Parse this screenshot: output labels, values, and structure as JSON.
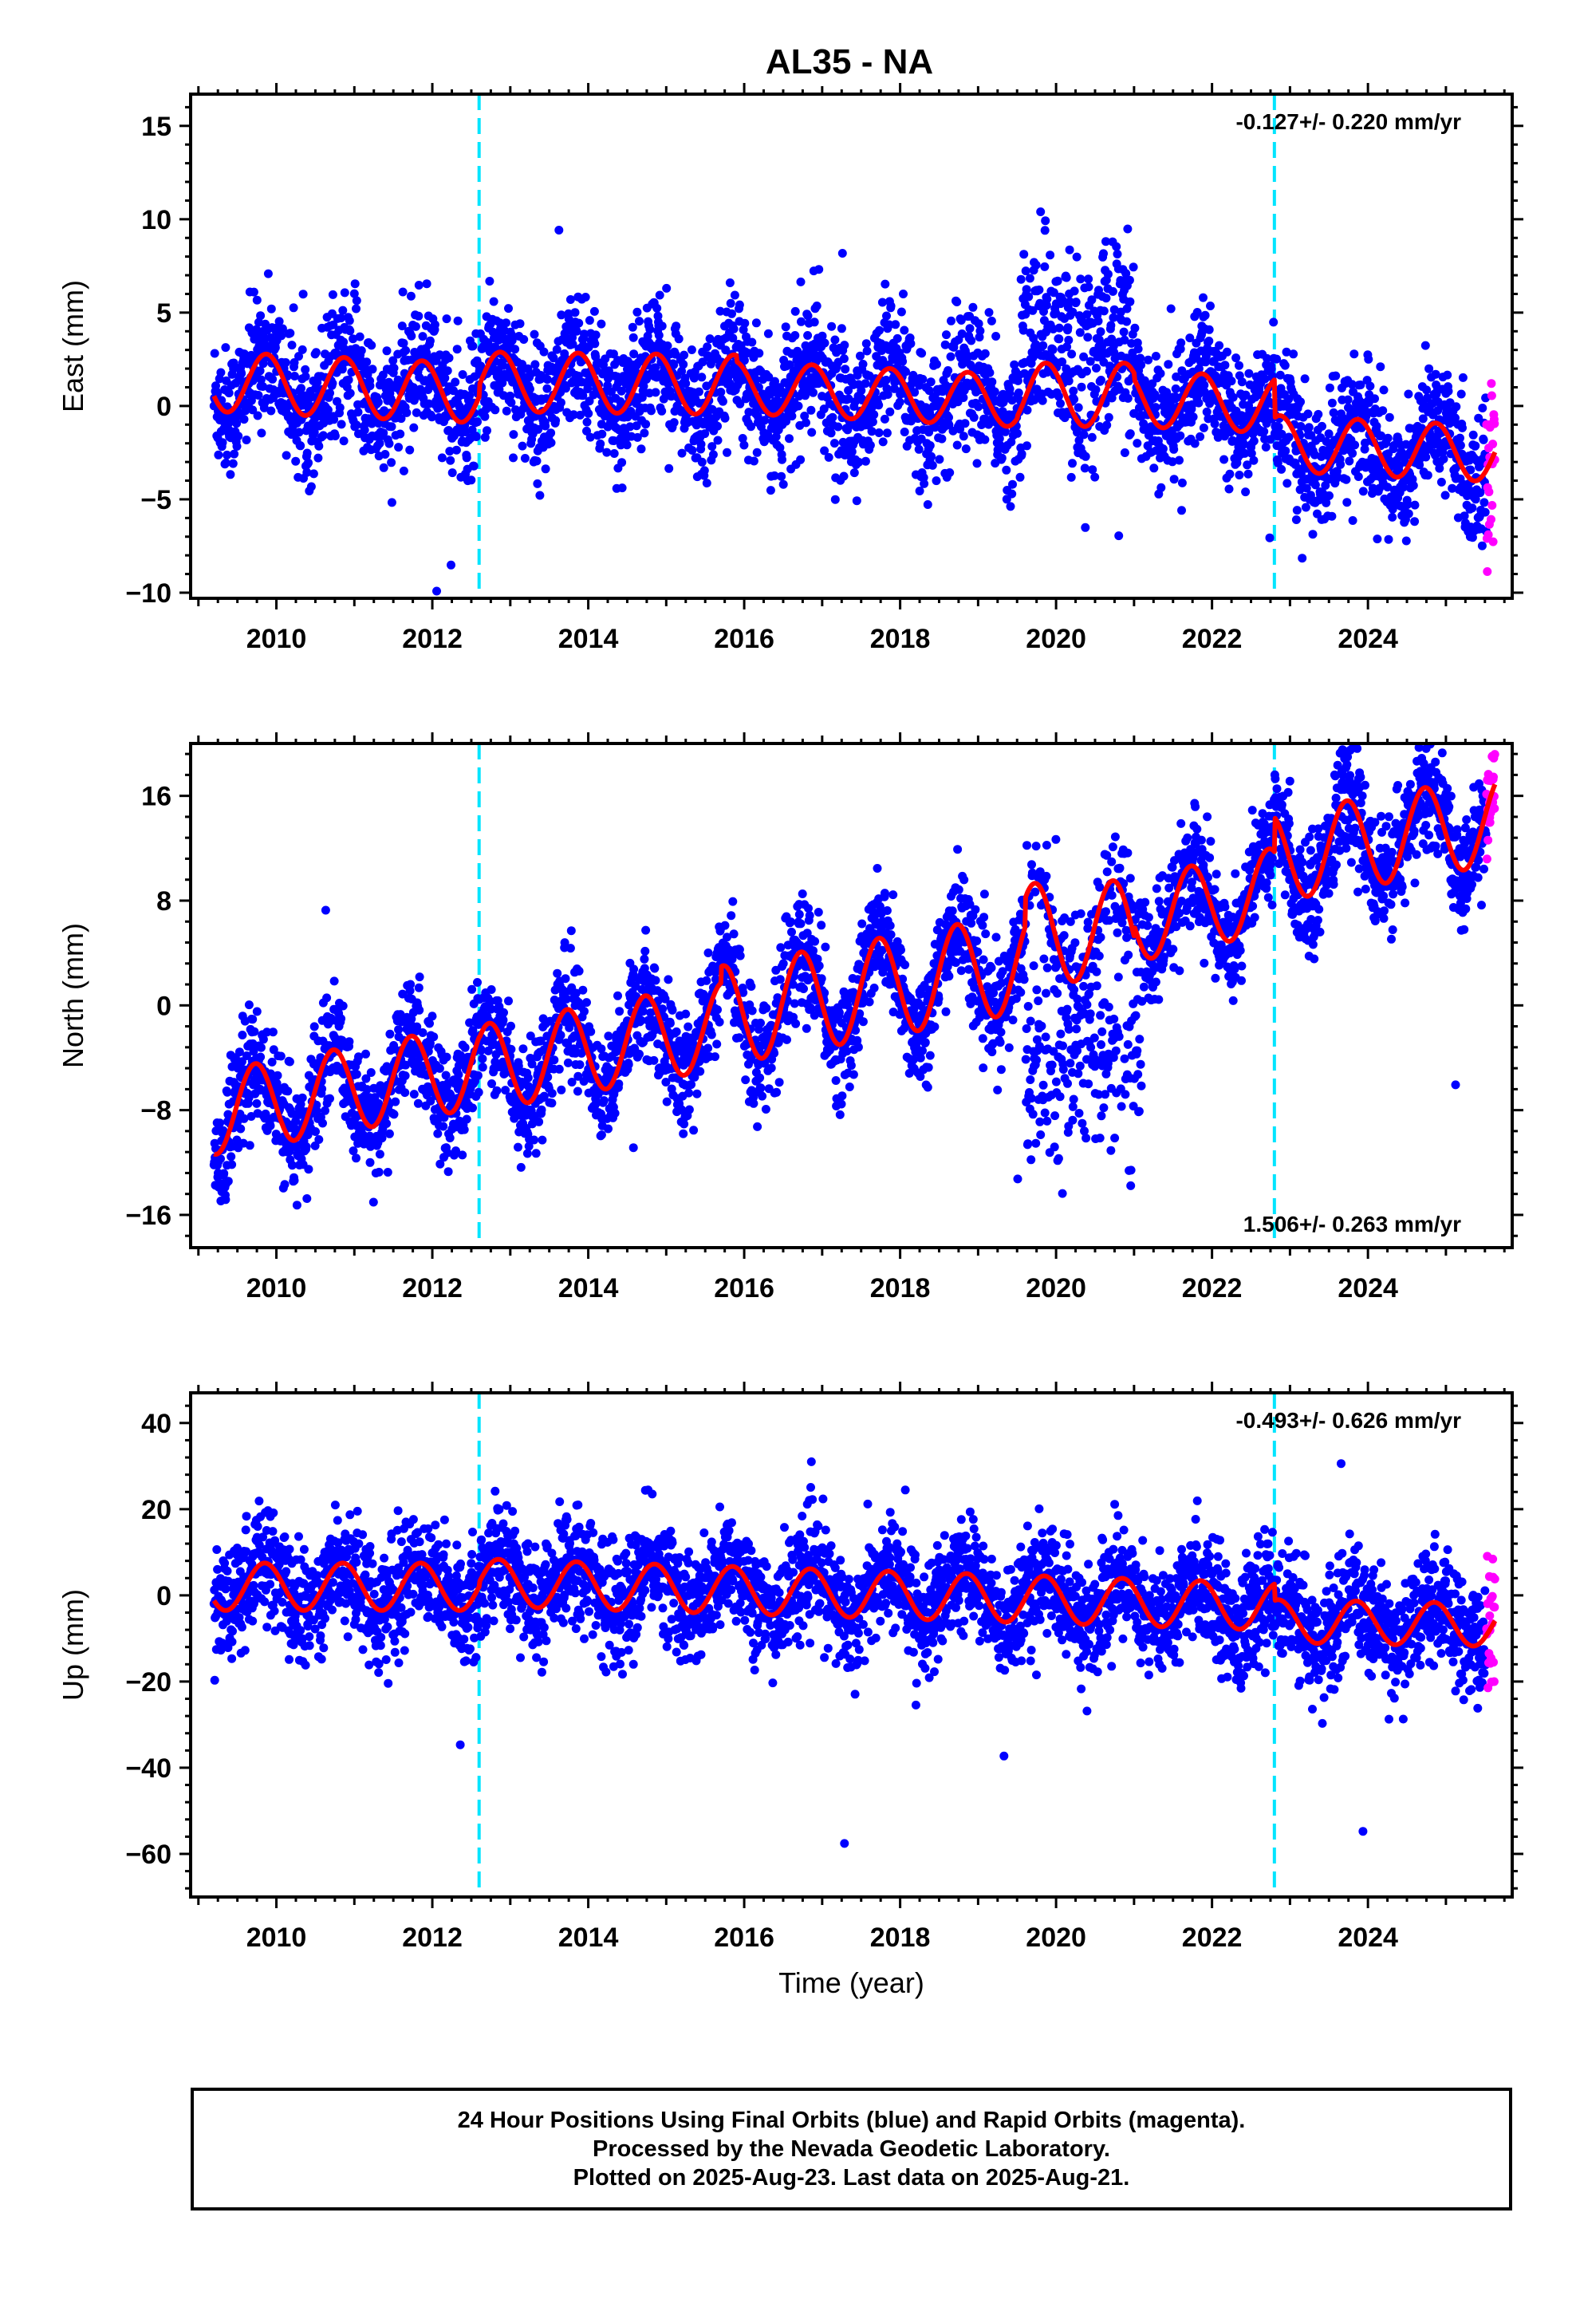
{
  "footer": {
    "line1": "24 Hour Positions Using Final Orbits (blue) and Rapid Orbits (magenta).",
    "line2": "Processed by the Nevada Geodetic Laboratory.",
    "line3": "Plotted on 2025-Aug-23. Last data on 2025-Aug-21."
  },
  "colors": {
    "final_orbits": "#0000ff",
    "rapid_orbits": "#ff00ff",
    "model_fit": "#ff0000",
    "equipment_change": "#00e5ff"
  },
  "chart_data": [
    {
      "type": "scatter",
      "title": "AL35 - NA",
      "ylabel": "East (mm)",
      "xlabel": "",
      "xlim": [
        2008.9,
        2025.85
      ],
      "ylim": [
        -10.3,
        16.7
      ],
      "xticks": [
        2010,
        2012,
        2014,
        2016,
        2018,
        2020,
        2022,
        2024
      ],
      "yticks": [
        -10,
        -5,
        0,
        5,
        10,
        15
      ],
      "rate_label": "-0.127+/- 0.220 mm/yr",
      "rate_position": "top-right",
      "data_start": 2009.2,
      "data_end": 2025.63,
      "rapid_start": 2025.52,
      "equipment_changes": [
        2012.6,
        2022.8
      ],
      "series": [
        {
          "name": "",
          "role": "model",
          "color": "#ff0000",
          "segments": [
            {
              "from": 2009.2,
              "to": 2012.6,
              "offset": 1.3,
              "slope": -0.18,
              "amplitude": 1.6,
              "phase": 0.62
            },
            {
              "from": 2012.6,
              "to": 2015.9,
              "offset": 1.3,
              "slope": -0.05,
              "amplitude": 1.6,
              "phase": 0.62
            },
            {
              "from": 2015.9,
              "to": 2019.5,
              "offset": 1.0,
              "slope": -0.2,
              "amplitude": 1.4,
              "phase": 0.62
            },
            {
              "from": 2019.5,
              "to": 2021.0,
              "offset": 0.6,
              "slope": 0.0,
              "amplitude": 1.7,
              "phase": 0.62
            },
            {
              "from": 2021.0,
              "to": 2022.8,
              "offset": 0.4,
              "slope": -0.2,
              "amplitude": 1.5,
              "phase": 0.62
            },
            {
              "from": 2022.8,
              "to": 2025.63,
              "offset": -2.0,
              "slope": -0.2,
              "amplitude": 1.5,
              "phase": 0.62
            }
          ],
          "anomalies": [
            {
              "from": 2019.55,
              "to": 2020.95,
              "value": 4.5,
              "spread": 2.0
            }
          ]
        },
        {
          "name": "",
          "role": "final-orbits",
          "color": "#0000ff",
          "noise": 1.7
        },
        {
          "name": "",
          "role": "rapid-orbits",
          "color": "#ff00ff",
          "noise": 2.2
        }
      ]
    },
    {
      "type": "scatter",
      "title": "",
      "ylabel": "North (mm)",
      "xlabel": "",
      "xlim": [
        2008.9,
        2025.85
      ],
      "ylim": [
        -18.5,
        20.0
      ],
      "xticks": [
        2010,
        2012,
        2014,
        2016,
        2018,
        2020,
        2022,
        2024
      ],
      "yticks": [
        -16,
        -8,
        0,
        8,
        16
      ],
      "rate_label": "1.506+/- 0.263 mm/yr",
      "rate_position": "bottom-right",
      "data_start": 2009.2,
      "data_end": 2025.63,
      "rapid_start": 2025.52,
      "equipment_changes": [
        2012.6,
        2022.8
      ],
      "series": [
        {
          "name": "",
          "role": "model",
          "color": "#ff0000",
          "segments": [
            {
              "from": 2009.2,
              "to": 2012.6,
              "offset": -8.2,
              "slope": 1.05,
              "amplitude": 3.2,
              "phase": 0.48
            },
            {
              "from": 2012.6,
              "to": 2015.7,
              "offset": -4.8,
              "slope": 1.05,
              "amplitude": 3.3,
              "phase": 0.48
            },
            {
              "from": 2015.7,
              "to": 2019.6,
              "offset": -0.8,
              "slope": 1.05,
              "amplitude": 3.8,
              "phase": 0.48
            },
            {
              "from": 2019.6,
              "to": 2021.0,
              "offset": 5.5,
              "slope": 0.2,
              "amplitude": 3.8,
              "phase": 0.48
            },
            {
              "from": 2021.0,
              "to": 2022.8,
              "offset": 6.5,
              "slope": 1.3,
              "amplitude": 3.2,
              "phase": 0.48
            },
            {
              "from": 2022.8,
              "to": 2025.63,
              "offset": 11.3,
              "slope": 1.0,
              "amplitude": 3.4,
              "phase": 0.48
            }
          ],
          "anomalies": [
            {
              "from": 2019.6,
              "to": 2021.1,
              "value": -6.0,
              "spread": 3.5
            }
          ]
        },
        {
          "name": "",
          "role": "final-orbits",
          "color": "#0000ff",
          "noise": 2.1
        },
        {
          "name": "",
          "role": "rapid-orbits",
          "color": "#ff00ff",
          "noise": 2.0
        }
      ]
    },
    {
      "type": "scatter",
      "title": "",
      "ylabel": "Up (mm)",
      "xlabel": "Time (year)",
      "xlim": [
        2008.9,
        2025.85
      ],
      "ylim": [
        -70,
        47
      ],
      "xticks": [
        2010,
        2012,
        2014,
        2016,
        2018,
        2020,
        2022,
        2024
      ],
      "yticks": [
        -60,
        -40,
        -20,
        0,
        20,
        40
      ],
      "rate_label": "-0.493+/- 0.626 mm/yr",
      "rate_position": "top-right",
      "data_start": 2009.2,
      "data_end": 2025.63,
      "rapid_start": 2025.52,
      "equipment_changes": [
        2012.6,
        2022.8
      ],
      "series": [
        {
          "name": "",
          "role": "model",
          "color": "#ff0000",
          "segments": [
            {
              "from": 2009.2,
              "to": 2012.6,
              "offset": 2.0,
              "slope": 0.0,
              "amplitude": 5.5,
              "phase": 0.6
            },
            {
              "from": 2012.6,
              "to": 2022.8,
              "offset": 3.0,
              "slope": -0.55,
              "amplitude": 5.5,
              "phase": 0.6
            },
            {
              "from": 2022.8,
              "to": 2025.63,
              "offset": -6.0,
              "slope": -0.3,
              "amplitude": 5.0,
              "phase": 0.6
            }
          ],
          "anomalies": []
        },
        {
          "name": "",
          "role": "final-orbits",
          "color": "#0000ff",
          "noise": 6.5
        },
        {
          "name": "",
          "role": "rapid-orbits",
          "color": "#ff00ff",
          "noise": 7.0
        }
      ]
    }
  ]
}
